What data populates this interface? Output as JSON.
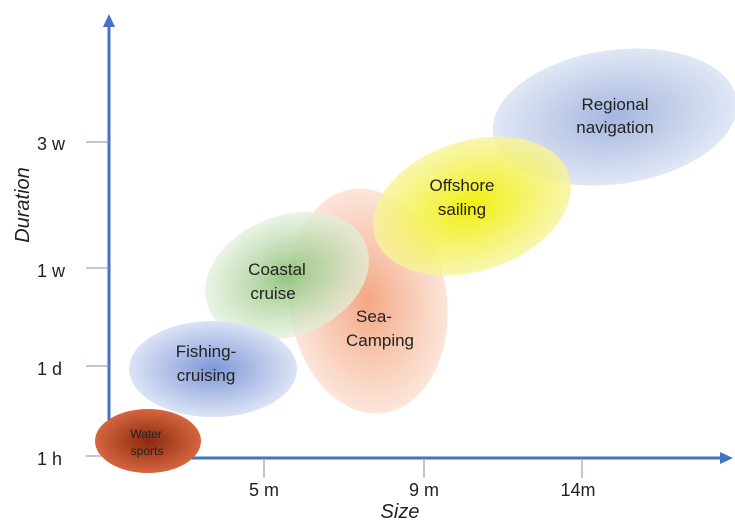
{
  "axes": {
    "x_title": "Size",
    "y_title": "Duration",
    "x_ticks": [
      "5 m",
      "9 m",
      "14m"
    ],
    "y_ticks": [
      "1 h",
      "1 d",
      "1 w",
      "3 w"
    ]
  },
  "zones": [
    {
      "lines": [
        "Water",
        "sports"
      ],
      "color": "#b8421e"
    },
    {
      "lines": [
        "Fishing-",
        "cruising"
      ],
      "color": "#8fa6dc"
    },
    {
      "lines": [
        "Sea-",
        "Camping"
      ],
      "color": "#f0a882"
    },
    {
      "lines": [
        "Coastal",
        "cruise"
      ],
      "color": "#9bc98a"
    },
    {
      "lines": [
        "Offshore",
        "sailing"
      ],
      "color": "#f2f000"
    },
    {
      "lines": [
        "Regional",
        "navigation"
      ],
      "color": "#9fb2dc"
    }
  ],
  "colors": {
    "axis": "#4472c4"
  }
}
